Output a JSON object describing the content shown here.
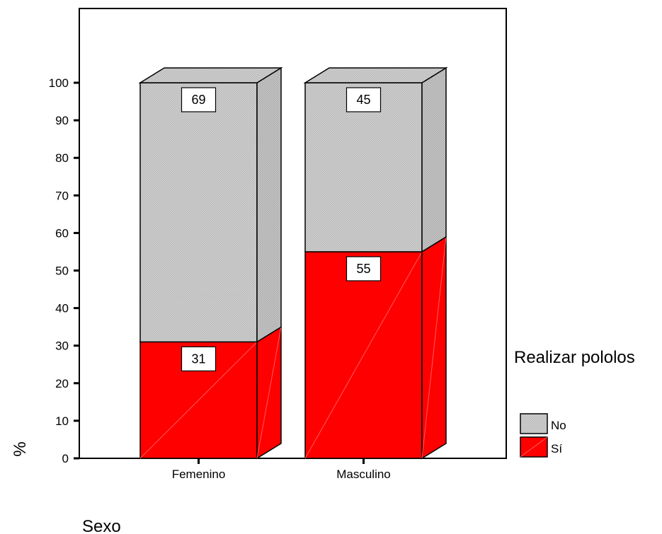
{
  "chart_data": {
    "type": "bar",
    "stacked": true,
    "percent": true,
    "categories": [
      "Femenino",
      "Masculino"
    ],
    "series": [
      {
        "name": "Sí",
        "values": [
          31,
          55
        ],
        "color": "#ff0000"
      },
      {
        "name": "No",
        "values": [
          69,
          45
        ],
        "color": "#c8c8c8"
      }
    ],
    "xlabel": "Sexo",
    "ylabel": "%",
    "ylim": [
      0,
      100
    ],
    "yticks": [
      0,
      10,
      20,
      30,
      40,
      50,
      60,
      70,
      80,
      90,
      100
    ],
    "grid": false,
    "legend": {
      "title": "Realizar pololos",
      "placement": "right",
      "items": [
        "No",
        "Sí"
      ]
    }
  },
  "colors": {
    "si": "#ff0000",
    "no": "#c8c8c8"
  }
}
